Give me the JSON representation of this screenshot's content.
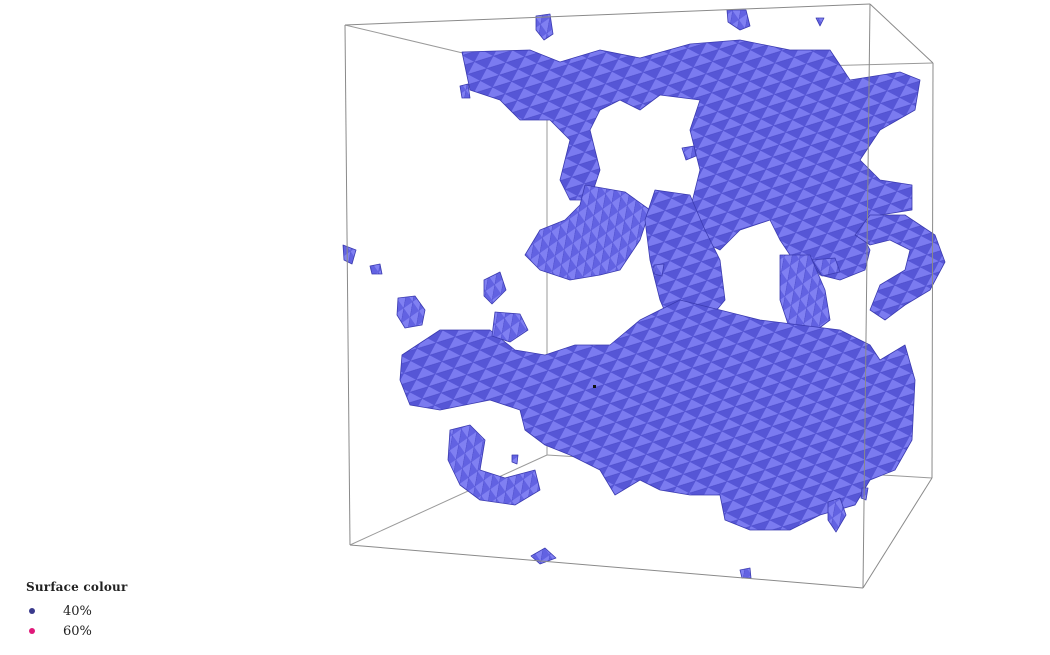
{
  "legend": {
    "title": "Surface colour",
    "items": [
      {
        "label": "40%",
        "color": "#3a3a8c"
      },
      {
        "label": "60%",
        "color": "#e0197a"
      }
    ]
  },
  "colors": {
    "surface": "#6b6bea",
    "surface_light": "#8d8df5",
    "surface_dark": "#3e3eb8",
    "box_edge": "#8a8a8a"
  }
}
